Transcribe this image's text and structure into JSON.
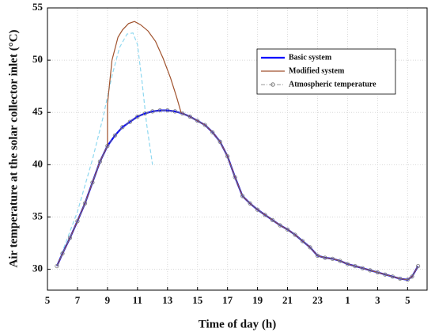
{
  "chart_data": {
    "type": "line",
    "xlabel": "Time of day (h)",
    "ylabel": "Air temperature at the solar collector inlet (°C)",
    "xlim": [
      5,
      30.3
    ],
    "ylim": [
      28,
      55
    ],
    "xticks": [
      5,
      7,
      9,
      11,
      13,
      15,
      17,
      19,
      21,
      23,
      {
        "value": 25,
        "label": "1"
      },
      {
        "value": 27,
        "label": "3"
      },
      {
        "value": 29,
        "label": "5"
      }
    ],
    "yticks": [
      30,
      35,
      40,
      45,
      50,
      55
    ],
    "grid": true,
    "legend": "upper right",
    "series": [
      {
        "name": "Basic system",
        "color": "#0000ff",
        "linestyle": "solid",
        "x": [
          5.63,
          6,
          6.5,
          7,
          7.5,
          8,
          8.5,
          9,
          9.5,
          10,
          10.5,
          11,
          11.5,
          12,
          12.5,
          13,
          13.5,
          14,
          14.5,
          15,
          15.5,
          16,
          16.5,
          17,
          17.5,
          18,
          18.5,
          19,
          19.5,
          20,
          20.5,
          21,
          21.5,
          22,
          22.5,
          23,
          23.5,
          24,
          24.5,
          25,
          25.5,
          26,
          26.5,
          27,
          27.5,
          28,
          28.5,
          29,
          29.3,
          29.7
        ],
        "values": [
          30.3,
          31.5,
          33,
          34.6,
          36.3,
          38.3,
          40.3,
          41.8,
          42.8,
          43.6,
          44.1,
          44.6,
          44.9,
          45.1,
          45.2,
          45.2,
          45.1,
          44.9,
          44.6,
          44.2,
          43.8,
          43.1,
          42.2,
          40.8,
          38.8,
          37,
          36.3,
          35.7,
          35.2,
          34.7,
          34.2,
          33.8,
          33.3,
          32.7,
          32.1,
          31.3,
          31.1,
          31,
          30.8,
          30.5,
          30.3,
          30.1,
          29.9,
          29.7,
          29.5,
          29.3,
          29.1,
          29,
          29.3,
          30.3
        ]
      },
      {
        "name": "Modified system",
        "color": "#a0522d",
        "linestyle": "solid",
        "x": [
          5.63,
          6,
          6.5,
          7,
          7.5,
          8,
          8.5,
          9,
          9,
          9.3,
          9.7,
          10,
          10.4,
          10.8,
          11.2,
          11.7,
          12.2,
          12.7,
          13.2,
          13.6,
          13.9,
          14,
          14.5,
          15,
          15.5,
          16,
          16.5,
          17,
          17.5,
          18,
          18.5,
          19,
          19.5,
          20,
          20.5,
          21,
          21.5,
          22,
          22.5,
          23,
          23.5,
          24,
          24.5,
          25,
          25.5,
          26,
          26.5,
          27,
          27.5,
          28,
          28.5,
          29,
          29.3,
          29.7
        ],
        "values": [
          30.3,
          31.5,
          33,
          34.6,
          36.3,
          38.3,
          40.3,
          41.8,
          45.8,
          50,
          52.2,
          52.9,
          53.5,
          53.7,
          53.4,
          52.8,
          51.8,
          50.2,
          48.3,
          46.5,
          45,
          44.9,
          44.6,
          44.2,
          43.8,
          43.1,
          42.2,
          40.8,
          38.8,
          37,
          36.3,
          35.7,
          35.2,
          34.7,
          34.2,
          33.8,
          33.3,
          32.7,
          32.1,
          31.3,
          31.1,
          31,
          30.8,
          30.5,
          30.3,
          30.1,
          29.9,
          29.7,
          29.5,
          29.3,
          29.1,
          29,
          29.3,
          30.3
        ]
      },
      {
        "name": "Atmospheric temperature",
        "color": "#777777",
        "linestyle": "dashdot",
        "marker": "circle",
        "x": [
          5.63,
          6,
          6.5,
          7,
          7.5,
          8,
          8.5,
          9,
          9.5,
          10,
          10.5,
          11,
          11.5,
          12,
          12.5,
          13,
          13.5,
          14,
          14.5,
          15,
          15.5,
          16,
          16.5,
          17,
          17.5,
          18,
          18.5,
          19,
          19.5,
          20,
          20.5,
          21,
          21.5,
          22,
          22.5,
          23,
          23.5,
          24,
          24.5,
          25,
          25.5,
          26,
          26.5,
          27,
          27.5,
          28,
          28.5,
          29,
          29.3,
          29.7
        ],
        "values": [
          30.3,
          31.5,
          33,
          34.6,
          36.3,
          38.3,
          40.3,
          41.8,
          42.8,
          43.6,
          44.1,
          44.6,
          44.9,
          45.1,
          45.2,
          45.2,
          45.1,
          44.9,
          44.6,
          44.2,
          43.8,
          43.1,
          42.2,
          40.8,
          38.8,
          37,
          36.3,
          35.7,
          35.2,
          34.7,
          34.2,
          33.8,
          33.3,
          32.7,
          32.1,
          31.3,
          31.1,
          31,
          30.8,
          30.5,
          30.3,
          30.1,
          29.9,
          29.7,
          29.5,
          29.3,
          29.1,
          29,
          29.3,
          30.3
        ]
      },
      {
        "color": "#8fd8f0",
        "linestyle": "dashed",
        "x": [
          5.63,
          7,
          8,
          8.7,
          9.3,
          9.8,
          10.3,
          10.7,
          11,
          11.3,
          11.6,
          12
        ],
        "values": [
          30.3,
          35.5,
          40.5,
          44.5,
          48.5,
          51.2,
          52.5,
          52.6,
          51.5,
          48,
          44,
          40
        ]
      }
    ]
  }
}
